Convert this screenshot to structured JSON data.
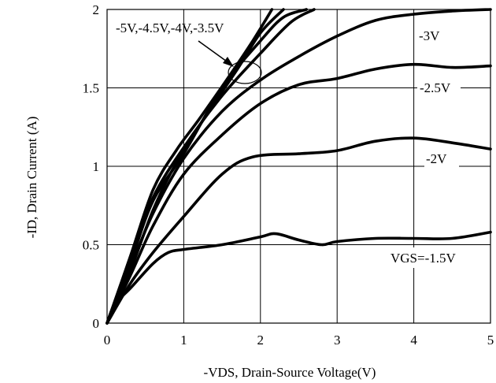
{
  "chart_data": {
    "type": "line",
    "xlabel": "-VDS, Drain-Source Voltage(V)",
    "ylabel": "-ID, Drain Current (A)",
    "xlim": [
      0,
      5
    ],
    "ylim": [
      0,
      2
    ],
    "x_ticks": [
      "0",
      "1",
      "2",
      "3",
      "4",
      "5"
    ],
    "y_ticks": [
      "0",
      "0.5",
      "1",
      "1.5",
      "2"
    ],
    "grid": true,
    "series": [
      {
        "name": "VGS=-1.5V",
        "x": [
          0,
          0.1,
          0.3,
          0.6,
          0.8,
          1.0,
          1.5,
          2.0,
          2.2,
          2.5,
          2.8,
          3.0,
          3.5,
          4.0,
          4.5,
          5.0
        ],
        "y": [
          0,
          0.12,
          0.22,
          0.38,
          0.45,
          0.47,
          0.5,
          0.55,
          0.57,
          0.53,
          0.5,
          0.52,
          0.54,
          0.54,
          0.54,
          0.58
        ]
      },
      {
        "name": "-2V",
        "x": [
          0,
          0.3,
          0.6,
          1.0,
          1.5,
          1.9,
          2.5,
          3.0,
          3.5,
          4.0,
          4.5,
          5.0
        ],
        "y": [
          0,
          0.25,
          0.45,
          0.68,
          0.95,
          1.06,
          1.08,
          1.1,
          1.16,
          1.18,
          1.15,
          1.11
        ]
      },
      {
        "name": "-2.5V",
        "x": [
          0,
          0.3,
          0.6,
          1.0,
          1.5,
          2.0,
          2.5,
          3.0,
          3.5,
          4.0,
          4.5,
          5.0
        ],
        "y": [
          0,
          0.3,
          0.62,
          0.95,
          1.2,
          1.4,
          1.52,
          1.56,
          1.62,
          1.65,
          1.63,
          1.64
        ]
      },
      {
        "name": "-3V",
        "x": [
          0,
          0.3,
          0.6,
          1.0,
          1.5,
          2.0,
          2.5,
          3.0,
          3.5,
          4.0,
          4.5,
          5.0
        ],
        "y": [
          0,
          0.35,
          0.7,
          1.05,
          1.35,
          1.55,
          1.7,
          1.83,
          1.93,
          1.97,
          1.99,
          2.0
        ]
      },
      {
        "name": "-3.5V",
        "x": [
          0,
          0.3,
          0.6,
          1.0,
          1.5,
          2.0,
          2.4,
          2.7
        ],
        "y": [
          0,
          0.4,
          0.8,
          1.12,
          1.45,
          1.72,
          1.92,
          2.0
        ]
      },
      {
        "name": "-4V",
        "x": [
          0,
          0.3,
          0.6,
          1.0,
          1.5,
          2.0,
          2.3,
          2.6
        ],
        "y": [
          0,
          0.38,
          0.78,
          1.08,
          1.5,
          1.8,
          1.95,
          2.0
        ]
      },
      {
        "name": "-4.5V",
        "x": [
          0,
          0.3,
          0.6,
          0.9,
          1.3,
          1.7,
          2.0,
          2.3
        ],
        "y": [
          0,
          0.33,
          0.72,
          1.02,
          1.33,
          1.62,
          1.85,
          2.0
        ]
      },
      {
        "name": "-5V",
        "x": [
          0,
          0.3,
          0.6,
          0.9,
          1.2,
          1.6,
          1.9,
          2.15
        ],
        "y": [
          0,
          0.42,
          0.85,
          1.1,
          1.3,
          1.58,
          1.8,
          2.0
        ]
      }
    ],
    "annotations": [
      {
        "text": "-5V,-4.5V,-4V,-3.5V"
      },
      {
        "text": "-3V"
      },
      {
        "text": "-2.5V"
      },
      {
        "text": "-2V"
      },
      {
        "text": "VGS=-1.5V"
      }
    ]
  }
}
